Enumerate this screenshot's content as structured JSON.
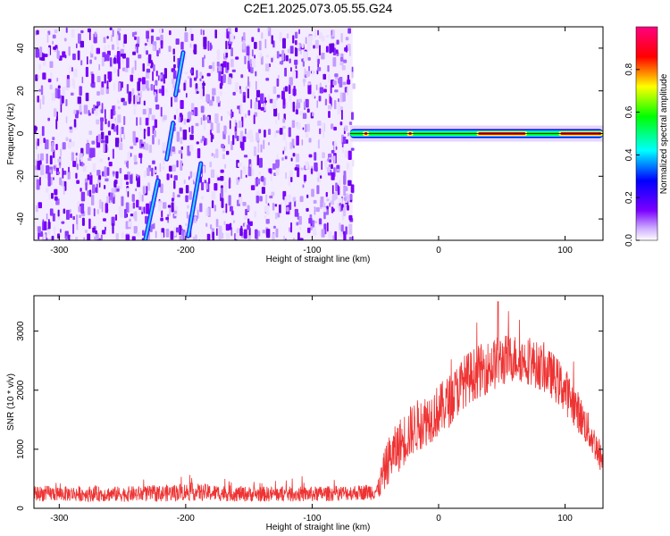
{
  "title": "C2E1.2025.073.05.55.G24",
  "chart_data": [
    {
      "type": "heatmap",
      "xlabel": "Height of straight line (km)",
      "ylabel": "Frequency (Hz)",
      "xlim": [
        -320,
        130
      ],
      "ylim": [
        -50,
        50
      ],
      "xticks": [
        -300,
        -200,
        -100,
        0,
        100
      ],
      "yticks": [
        -40,
        -20,
        0,
        20,
        40
      ],
      "noise_region_x": [
        -320,
        -68
      ],
      "signal_trace": {
        "frequency_hz": 0,
        "x_start": -70,
        "x_end": 130,
        "peak_segments": [
          [
            -60,
            -55
          ],
          [
            -25,
            -20
          ],
          [
            30,
            70
          ],
          [
            95,
            130
          ]
        ]
      },
      "streaks": [
        {
          "x0": -232,
          "y0": -50,
          "x1": -222,
          "y1": -22
        },
        {
          "x0": -215,
          "y0": -12,
          "x1": -210,
          "y1": 5
        },
        {
          "x0": -208,
          "y0": 18,
          "x1": -202,
          "y1": 38
        },
        {
          "x0": -198,
          "y0": -48,
          "x1": -188,
          "y1": -14
        }
      ],
      "colorbar": {
        "label": "Normalized spectral amplitude",
        "range": [
          0,
          1
        ],
        "ticks": [
          "0.0",
          "0.2",
          "0.4",
          "0.6",
          "0.8"
        ],
        "colormap": [
          "#ffffff",
          "#7b00ff",
          "#0000ff",
          "#00ffff",
          "#00ff00",
          "#ffff00",
          "#ff0000",
          "#ff0080"
        ]
      }
    },
    {
      "type": "line",
      "xlabel": "Height of straight line (km)",
      "ylabel": "SNR (10 * v/v)",
      "xlim": [
        -320,
        130
      ],
      "ylim": [
        0,
        3600
      ],
      "xticks": [
        -300,
        -200,
        -100,
        0,
        100
      ],
      "yticks": [
        0,
        1000,
        2000,
        3000
      ],
      "color": "#ee3333",
      "envelope": {
        "x": [
          -320,
          -250,
          -220,
          -200,
          -150,
          -100,
          -60,
          -48,
          -45,
          -40,
          -30,
          -20,
          -10,
          0,
          10,
          20,
          30,
          40,
          50,
          60,
          70,
          80,
          90,
          100,
          110,
          120,
          130
        ],
        "center": [
          250,
          240,
          250,
          280,
          240,
          240,
          270,
          300,
          500,
          800,
          1100,
          1350,
          1500,
          1650,
          1850,
          2150,
          2300,
          2400,
          2500,
          2550,
          2500,
          2400,
          2250,
          2000,
          1650,
          1250,
          800
        ],
        "spread": [
          130,
          130,
          140,
          150,
          130,
          130,
          130,
          160,
          300,
          400,
          450,
          450,
          450,
          450,
          450,
          450,
          450,
          450,
          450,
          400,
          400,
          400,
          400,
          400,
          350,
          300,
          250
        ]
      },
      "max_value": 3500
    }
  ]
}
